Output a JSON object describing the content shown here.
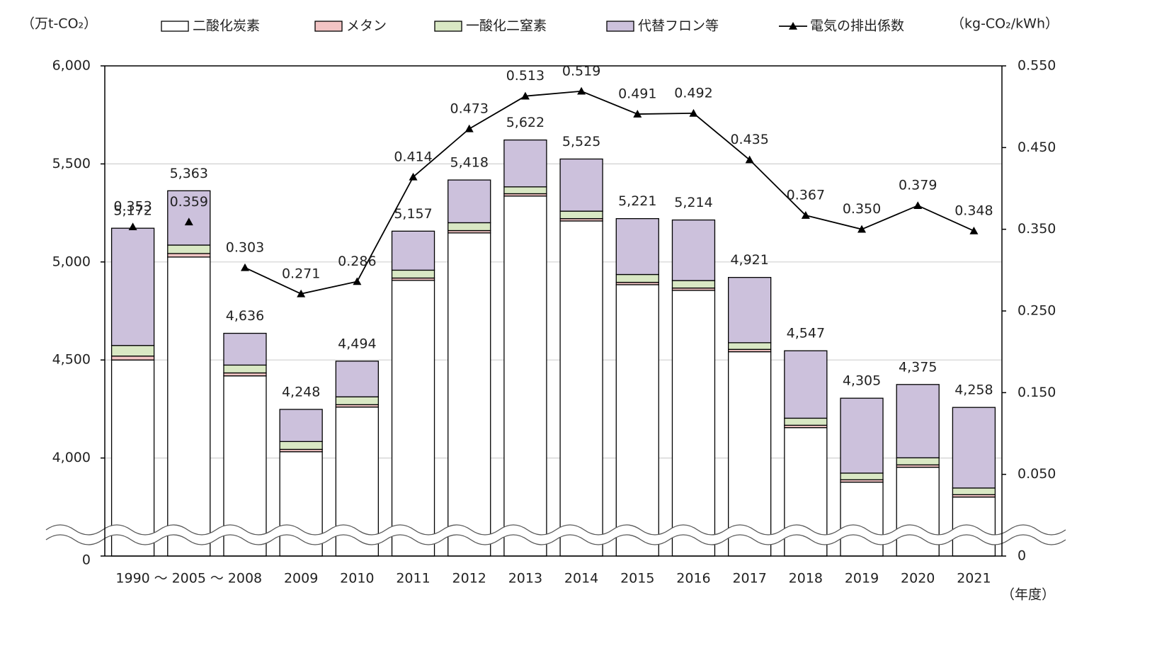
{
  "chart_data": {
    "type": "bar",
    "stacked": true,
    "y_label": "（万t-CO₂）",
    "y2_label": "（kg-CO₂/kWh）",
    "x_label": "（年度）",
    "categories": [
      "1990",
      "2005",
      "2008",
      "2009",
      "2010",
      "2011",
      "2012",
      "2013",
      "2014",
      "2015",
      "2016",
      "2017",
      "2018",
      "2019",
      "2020",
      "2021"
    ],
    "x_breaks": [
      {
        "between": [
          "1990",
          "2005"
        ],
        "label": "～"
      },
      {
        "between": [
          "2005",
          "2008"
        ],
        "label": "～"
      }
    ],
    "series": [
      {
        "name": "二酸化炭素",
        "color": "#ffffff",
        "values": [
          4500,
          5025,
          4419,
          4032,
          4260,
          4906,
          5148,
          5336,
          5209,
          4884,
          4855,
          4542,
          4155,
          3877,
          3953,
          3801
        ]
      },
      {
        "name": "メタン",
        "color": "#f2c4c4",
        "values": [
          20,
          18,
          15,
          12,
          12,
          12,
          12,
          12,
          12,
          12,
          12,
          12,
          12,
          12,
          12,
          12
        ]
      },
      {
        "name": "一酸化二窒素",
        "color": "#d9e8c4",
        "values": [
          54,
          43,
          40,
          40,
          40,
          40,
          40,
          35,
          38,
          40,
          38,
          34,
          36,
          34,
          36,
          34
        ]
      },
      {
        "name": "代替フロン等",
        "color": "#ccc1dc",
        "values": [
          598,
          277,
          162,
          164,
          182,
          199,
          218,
          239,
          266,
          285,
          309,
          333,
          344,
          382,
          374,
          411
        ]
      },
      {
        "name": "電気の排出係数",
        "type": "line",
        "axis": "y2",
        "color": "#000000",
        "values": [
          0.353,
          0.359,
          0.303,
          0.271,
          0.286,
          0.414,
          0.473,
          0.513,
          0.519,
          0.491,
          0.492,
          0.435,
          0.367,
          0.35,
          0.379,
          0.348
        ],
        "value_labels": [
          "0.353",
          "0.359",
          "0.303",
          "0.271",
          "0.286",
          "0.414",
          "0.473",
          "0.513",
          "0.519",
          "0.491",
          "0.492",
          "0.435",
          "0.367",
          "0.350",
          "0.379",
          "0.348"
        ]
      }
    ],
    "totals": {
      "values": [
        5172,
        5363,
        4636,
        4248,
        4494,
        5157,
        5418,
        5622,
        5525,
        5221,
        5214,
        4921,
        4547,
        4305,
        4375,
        4258
      ],
      "value_labels": [
        "5,172",
        "5,363",
        "4,636",
        "4,248",
        "4,494",
        "5,157",
        "5,418",
        "5,622",
        "5,525",
        "5,221",
        "5,214",
        "4,921",
        "4,547",
        "4,305",
        "4,375",
        "4,258"
      ]
    },
    "ylim": [
      0,
      6000
    ],
    "yticks": [
      0,
      {
        "value": 4000,
        "label": "4,000"
      },
      {
        "value": 4500,
        "label": "4,500"
      },
      {
        "value": 5000,
        "label": "5,000"
      },
      {
        "value": 5500,
        "label": "5,500"
      },
      {
        "value": 6000,
        "label": "6,000"
      }
    ],
    "y2lim": [
      0,
      0.55
    ],
    "y2ticks": [
      0,
      {
        "value": 0.05,
        "label": "0.050"
      },
      {
        "value": 0.15,
        "label": "0.150"
      },
      {
        "value": 0.25,
        "label": "0.250"
      },
      {
        "value": 0.35,
        "label": "0.350"
      },
      {
        "value": 0.45,
        "label": "0.450"
      },
      {
        "value": 0.55,
        "label": "0.550"
      }
    ],
    "axis_break": {
      "y": [
        0,
        3500
      ],
      "y2": [
        0,
        -0.05
      ]
    },
    "grid": true
  }
}
